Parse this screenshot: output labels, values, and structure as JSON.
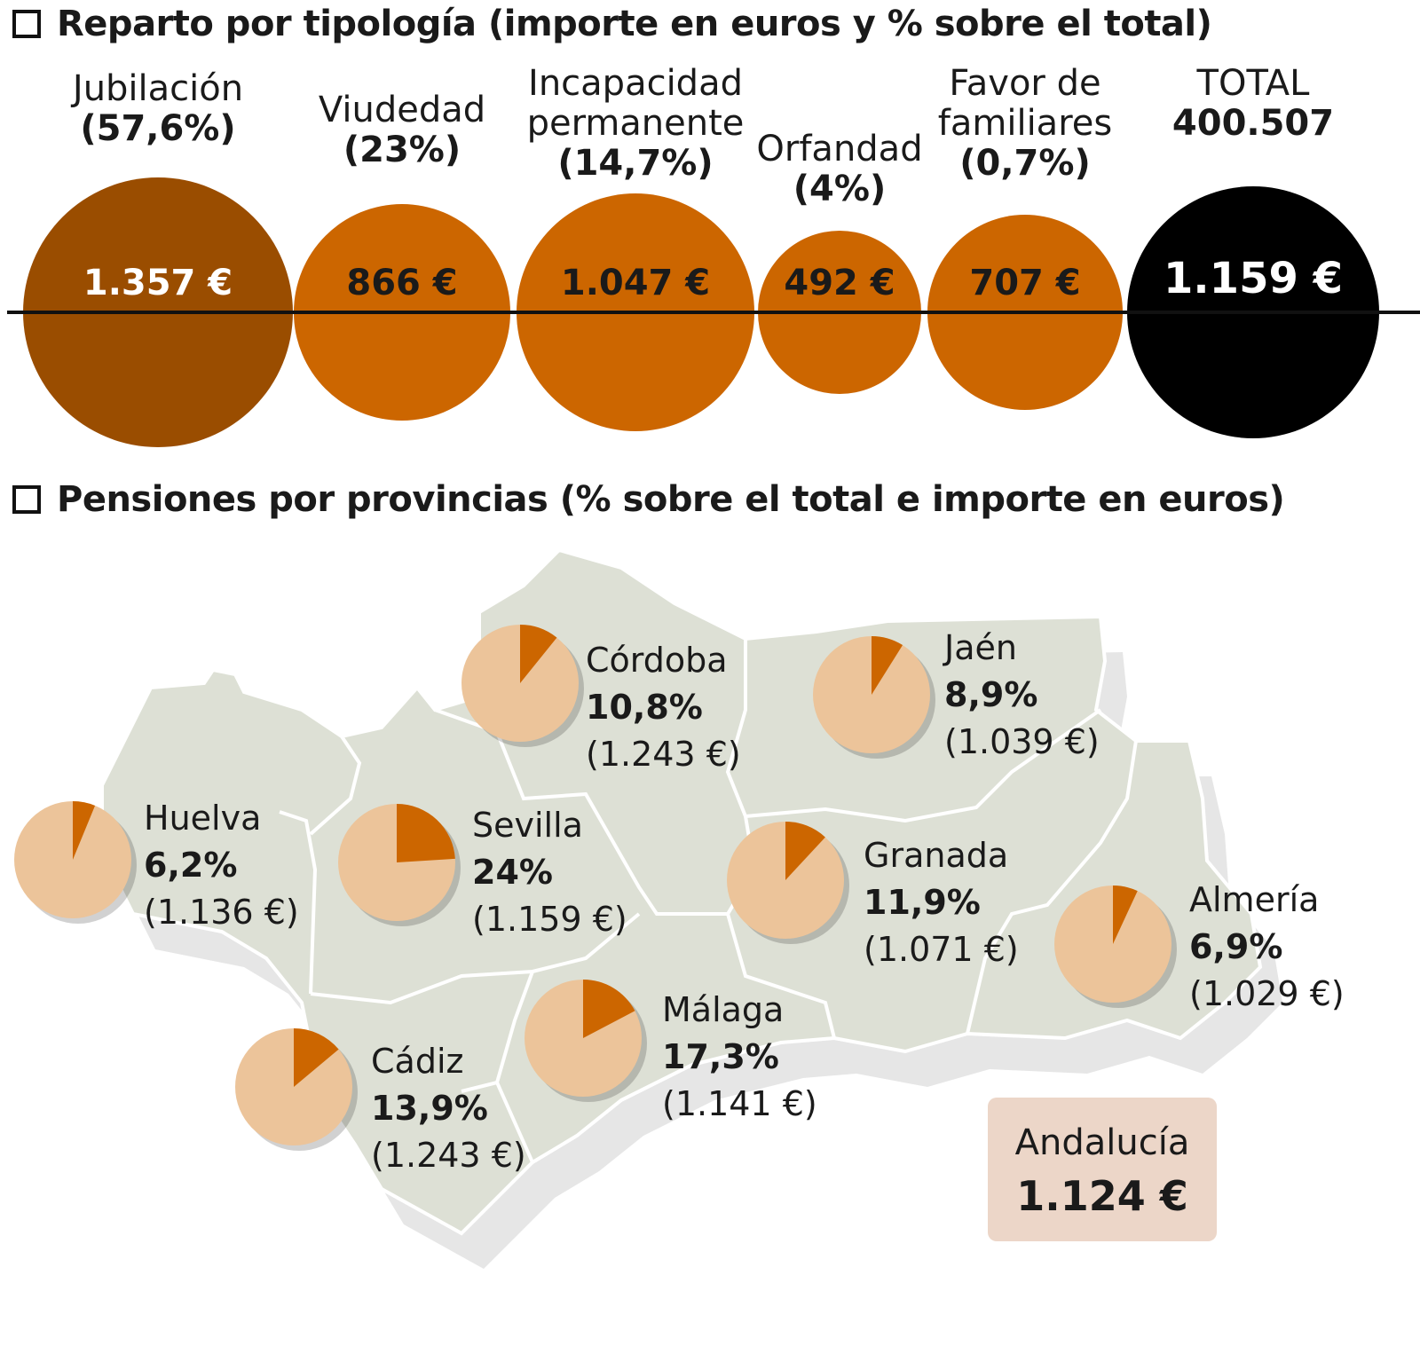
{
  "section1": {
    "title": "Reparto por tipología (importe en euros y % sobre el total)"
  },
  "section2": {
    "title": "Pensiones por provincias (% sobre el total e importe en euros)"
  },
  "colors": {
    "jubilacion": "#9a4d00",
    "orange": "#cc6600",
    "total": "#000000",
    "pie_light": "#ecc49a",
    "map": "#dde0d5",
    "summary_box": "#ecd6c8"
  },
  "chart_data": [
    {
      "type": "bubble",
      "title": "Reparto por tipología (importe en euros y % sobre el total)",
      "items": [
        {
          "name_lines": [
            "Jubilación"
          ],
          "pct_label": "(57,6%)",
          "pct": 57.6,
          "amount_label": "1.357 €",
          "amount": 1357,
          "color": "#9a4d00"
        },
        {
          "name_lines": [
            "Viudedad"
          ],
          "pct_label": "(23%)",
          "pct": 23,
          "amount_label": "866 €",
          "amount": 866,
          "color": "#cc6600"
        },
        {
          "name_lines": [
            "Incapacidad",
            "permanente"
          ],
          "pct_label": "(14,7%)",
          "pct": 14.7,
          "amount_label": "1.047 €",
          "amount": 1047,
          "color": "#cc6600"
        },
        {
          "name_lines": [
            "Orfandad"
          ],
          "pct_label": "(4%)",
          "pct": 4,
          "amount_label": "492 €",
          "amount": 492,
          "color": "#cc6600"
        },
        {
          "name_lines": [
            "Favor de",
            "familiares"
          ],
          "pct_label": "(0,7%)",
          "pct": 0.7,
          "amount_label": "707 €",
          "amount": 707,
          "color": "#cc6600"
        },
        {
          "name_lines": [
            "TOTAL"
          ],
          "pct_label": "400.507",
          "pct": null,
          "amount_label": "1.159 €",
          "amount": 1159,
          "color": "#000000"
        }
      ]
    },
    {
      "type": "pie",
      "title": "Pensiones por provincias (% sobre el total e importe en euros)",
      "provinces": [
        {
          "name": "Córdoba",
          "pct_label": "10,8%",
          "pct": 10.8,
          "amount_label": "(1.243 €)"
        },
        {
          "name": "Jaén",
          "pct_label": "8,9%",
          "pct": 8.9,
          "amount_label": "(1.039 €)"
        },
        {
          "name": "Huelva",
          "pct_label": "6,2%",
          "pct": 6.2,
          "amount_label": "(1.136 €)"
        },
        {
          "name": "Sevilla",
          "pct_label": "24%",
          "pct": 24,
          "amount_label": "(1.159 €)"
        },
        {
          "name": "Granada",
          "pct_label": "11,9%",
          "pct": 11.9,
          "amount_label": "(1.071 €)"
        },
        {
          "name": "Almería",
          "pct_label": "6,9%",
          "pct": 6.9,
          "amount_label": "(1.029 €)"
        },
        {
          "name": "Málaga",
          "pct_label": "17,3%",
          "pct": 17.3,
          "amount_label": "(1.141 €)"
        },
        {
          "name": "Cádiz",
          "pct_label": "13,9%",
          "pct": 13.9,
          "amount_label": "(1.243 €)"
        }
      ],
      "summary": {
        "name": "Andalucía",
        "amount_label": "1.124 €"
      }
    }
  ]
}
